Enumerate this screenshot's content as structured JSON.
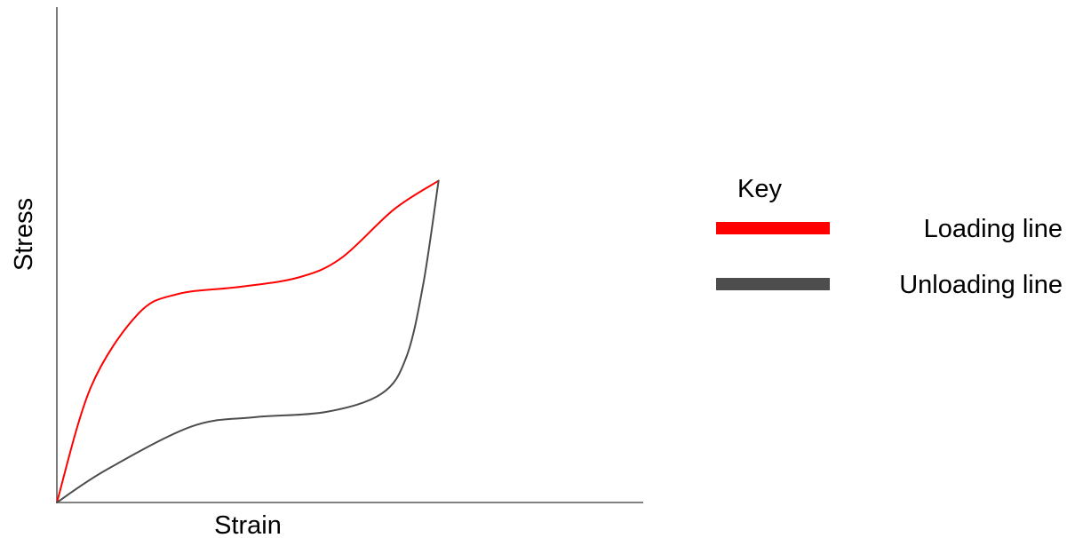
{
  "chart_data": {
    "type": "line",
    "xlabel": "Strain",
    "ylabel": "Stress",
    "axis_ticks": false,
    "grid": false,
    "xlim": [
      0,
      1
    ],
    "ylim": [
      0,
      1
    ],
    "series": [
      {
        "name": "Loading line",
        "color": "#ff0000",
        "x": [
          0,
          0.058,
          0.138,
          0.206,
          0.315,
          0.413,
          0.485,
          0.575,
          0.651
        ],
        "y": [
          0,
          0.234,
          0.382,
          0.423,
          0.438,
          0.457,
          0.496,
          0.595,
          0.653
        ]
      },
      {
        "name": "Unloading line",
        "color": "#4d4d4d",
        "x": [
          0,
          0.084,
          0.229,
          0.336,
          0.46,
          0.554,
          0.596,
          0.625,
          0.651
        ],
        "y": [
          0,
          0.066,
          0.154,
          0.173,
          0.184,
          0.221,
          0.295,
          0.444,
          0.653
        ]
      }
    ],
    "legend": {
      "title": "Key",
      "position": "right",
      "entries": [
        {
          "label": "Loading line",
          "color": "#ff0000"
        },
        {
          "label": "Unloading line",
          "color": "#4d4d4d"
        }
      ]
    }
  }
}
